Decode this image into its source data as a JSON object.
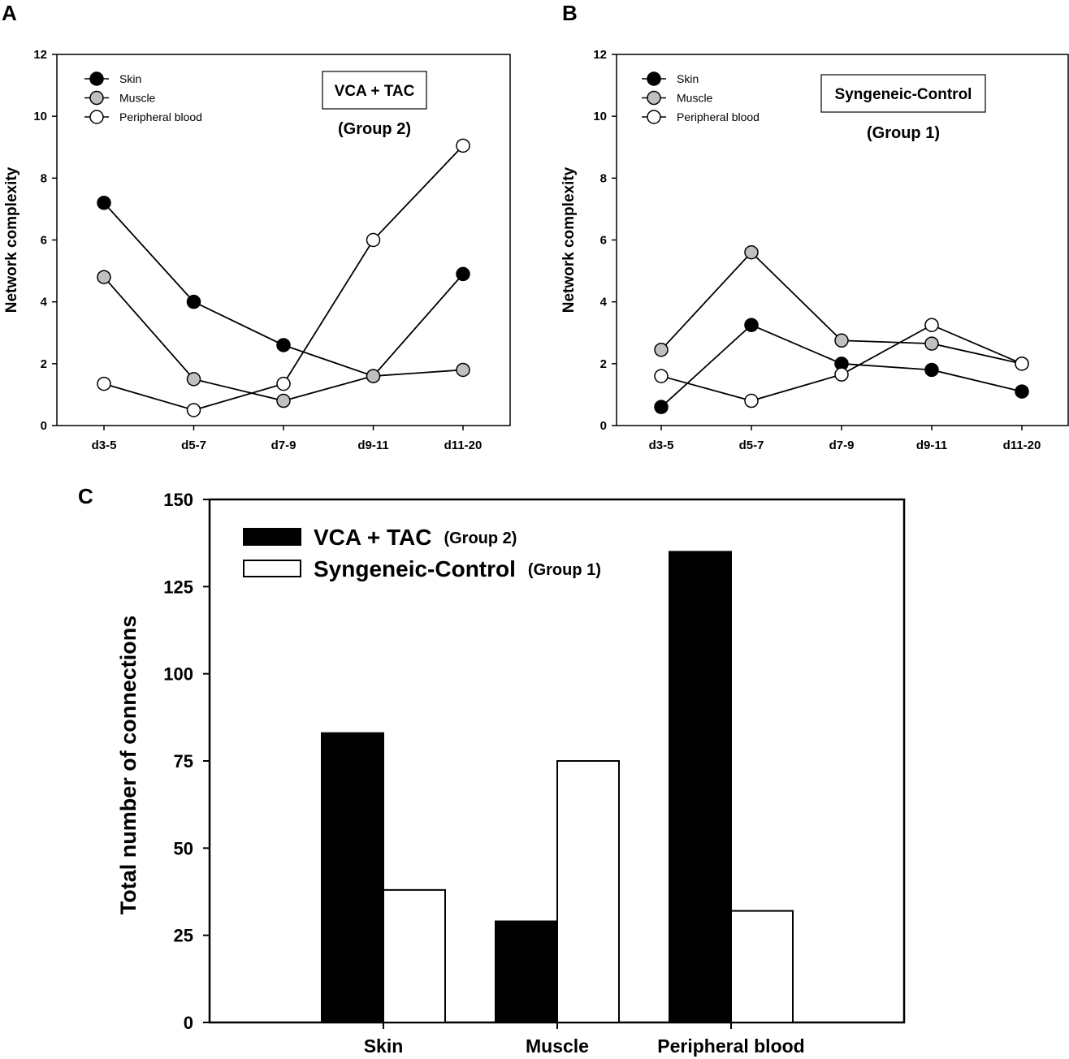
{
  "chart_data": [
    {
      "panel": "A",
      "type": "line",
      "ylabel": "Network complexity",
      "ylim": [
        0,
        12
      ],
      "yticks": [
        0,
        2,
        4,
        6,
        8,
        10,
        12
      ],
      "categories": [
        "d3-5",
        "d5-7",
        "d7-9",
        "d9-11",
        "d11-20"
      ],
      "annotation_box": "VCA + TAC",
      "annotation_sub": "(Group 2)",
      "series": [
        {
          "name": "Skin",
          "fill": "#000000",
          "values": [
            7.2,
            4.0,
            2.6,
            1.6,
            4.9
          ]
        },
        {
          "name": "Muscle",
          "fill": "#c0c0c0",
          "values": [
            4.8,
            1.5,
            0.8,
            1.6,
            1.8
          ]
        },
        {
          "name": "Peripheral blood",
          "fill": "#ffffff",
          "values": [
            1.35,
            0.5,
            1.35,
            6.0,
            9.05
          ]
        }
      ]
    },
    {
      "panel": "B",
      "type": "line",
      "ylabel": "Network complexity",
      "ylim": [
        0,
        12
      ],
      "yticks": [
        0,
        2,
        4,
        6,
        8,
        10,
        12
      ],
      "categories": [
        "d3-5",
        "d5-7",
        "d7-9",
        "d9-11",
        "d11-20"
      ],
      "annotation_box": "Syngeneic-Control",
      "annotation_sub": "(Group 1)",
      "series": [
        {
          "name": "Skin",
          "fill": "#000000",
          "values": [
            0.6,
            3.25,
            2.0,
            1.8,
            1.1
          ]
        },
        {
          "name": "Muscle",
          "fill": "#c0c0c0",
          "values": [
            2.45,
            5.6,
            2.75,
            2.65,
            2.0
          ]
        },
        {
          "name": "Peripheral blood",
          "fill": "#ffffff",
          "values": [
            1.6,
            0.8,
            1.65,
            3.25,
            2.0
          ]
        }
      ]
    },
    {
      "panel": "C",
      "type": "bar",
      "ylabel": "Total number of connections",
      "ylim": [
        0,
        150
      ],
      "yticks": [
        0,
        25,
        50,
        75,
        100,
        125,
        150
      ],
      "categories": [
        "Skin",
        "Muscle",
        "Peripheral blood"
      ],
      "series": [
        {
          "name": "VCA + TAC",
          "note": "(Group 2)",
          "fill": "#000000",
          "values": [
            83,
            29,
            135
          ]
        },
        {
          "name": "Syngeneic-Control",
          "note": "(Group 1)",
          "fill": "#ffffff",
          "values": [
            38,
            75,
            32
          ]
        }
      ]
    }
  ]
}
